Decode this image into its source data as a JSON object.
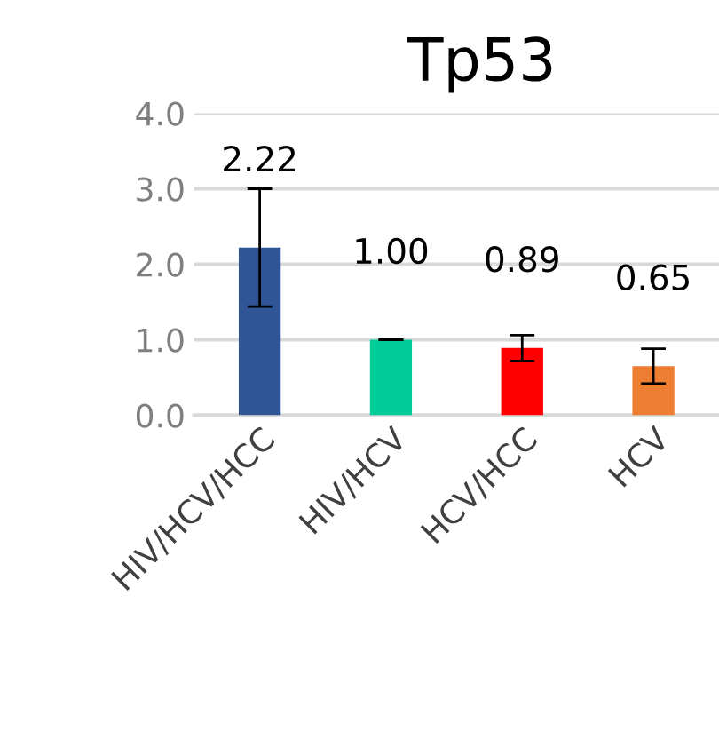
{
  "chart_data": {
    "type": "bar",
    "title": "Tp53",
    "categories": [
      "HIV/HCV/HCC",
      "HIV/HCV",
      "HCV/HCC",
      "HCV"
    ],
    "values": [
      2.22,
      1.0,
      0.89,
      0.65
    ],
    "colors": [
      "#2f5597",
      "#00cc99",
      "#ff0000",
      "#ed7d31"
    ],
    "errors": [
      0.78,
      0,
      0.17,
      0.23
    ],
    "value_labels": [
      "2.22",
      "1.00",
      "0.89",
      "0.65"
    ],
    "ylim": [
      0,
      4
    ],
    "yticks": [
      {
        "value": 0,
        "label": "0.0"
      },
      {
        "value": 1,
        "label": "1.0"
      },
      {
        "value": 2,
        "label": "2.0"
      },
      {
        "value": 3,
        "label": "3.0"
      },
      {
        "value": 4,
        "label": "4.0"
      }
    ],
    "grid": "y"
  }
}
